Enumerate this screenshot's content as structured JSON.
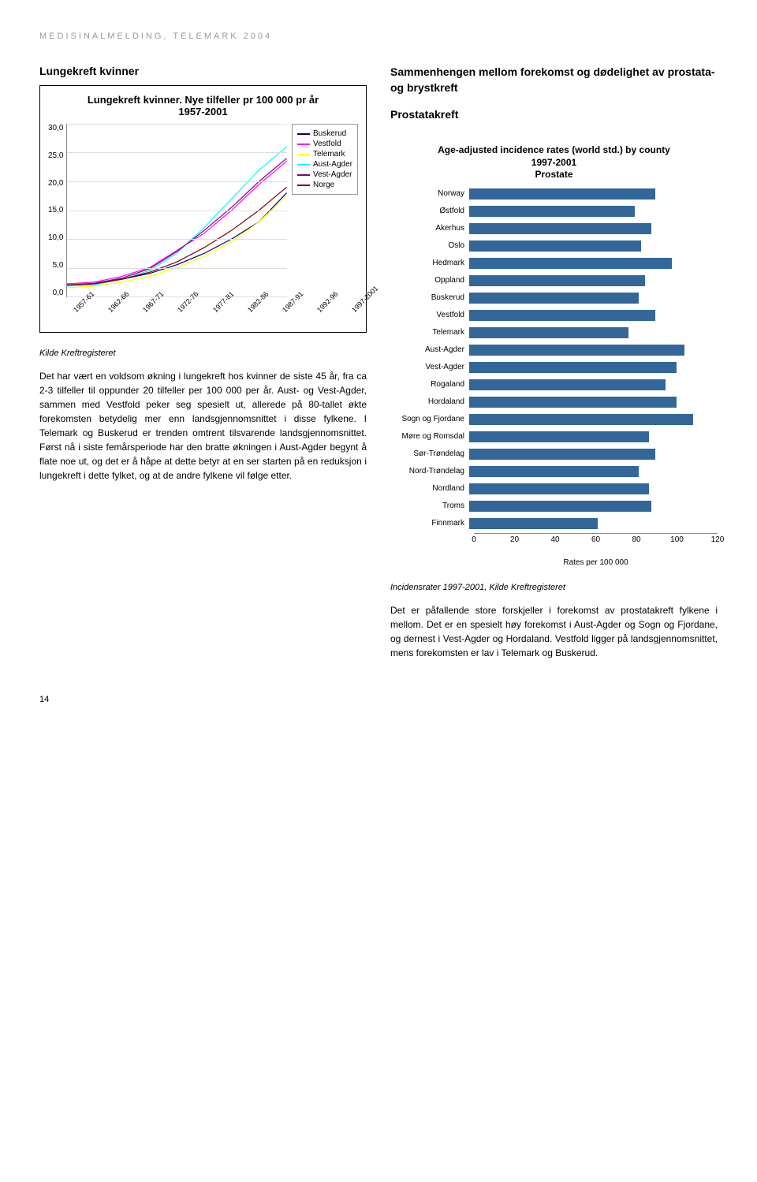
{
  "running_header": "MEDISINALMELDING, TELEMARK 2004",
  "page_number": "14",
  "left": {
    "section_title": "Lungekreft kvinner",
    "chart": {
      "type": "line",
      "title_line1": "Lungekreft kvinner. Nye tilfeller pr 100 000 pr år",
      "title_line2": "1957-2001",
      "y_ticks": [
        "30,0",
        "25,0",
        "20,0",
        "15,0",
        "10,0",
        "5,0",
        "0,0"
      ],
      "y_max": 30,
      "x_ticks": [
        "1957-61",
        "1962-66",
        "1967-71",
        "1972-76",
        "1977-81",
        "1982-86",
        "1987-91",
        "1992-96",
        "1997-2001"
      ],
      "series": [
        {
          "name": "Buskerud",
          "color": "#000080",
          "values": [
            2.0,
            2.2,
            3.0,
            4.0,
            5.5,
            7.5,
            10.0,
            13.0,
            18.0
          ]
        },
        {
          "name": "Vestfold",
          "color": "#ff00ff",
          "values": [
            2.2,
            2.5,
            3.5,
            5.0,
            8.0,
            11.0,
            15.0,
            19.5,
            23.5
          ]
        },
        {
          "name": "Telemark",
          "color": "#ffff00",
          "values": [
            1.5,
            1.8,
            2.5,
            3.5,
            5.0,
            7.0,
            9.5,
            13.0,
            17.5
          ]
        },
        {
          "name": "Aust-Agder",
          "color": "#00ffff",
          "values": [
            1.8,
            2.0,
            3.0,
            4.5,
            7.5,
            12.0,
            17.0,
            22.0,
            26.0
          ]
        },
        {
          "name": "Vest-Agder",
          "color": "#800080",
          "values": [
            2.0,
            2.3,
            3.2,
            4.8,
            7.8,
            11.5,
            15.5,
            20.0,
            24.0
          ]
        },
        {
          "name": "Norge",
          "color": "#800000",
          "values": [
            2.0,
            2.2,
            3.0,
            4.2,
            6.0,
            8.5,
            11.5,
            15.0,
            19.0
          ]
        }
      ],
      "background_color": "#ffffff",
      "grid_color": "#dddddd",
      "axis_color": "#888888",
      "label_fontsize": 10
    },
    "source": "Kilde Kreftregisteret",
    "paragraph": "Det har vært en voldsom økning i lungekreft hos kvinner de siste 45 år, fra ca 2-3 tilfeller til oppunder 20 tilfeller per 100 000 per år. Aust- og Vest-Agder, sammen med Vestfold peker seg spesielt ut, allerede på 80-tallet økte forekomsten betydelig mer enn landsgjennom­snittet i disse fylkene. I Telemark og Buskerud er trenden omtrent tilsvarende landsgjennom­snittet. Først nå i siste femårsperiode har den bratte økningen i Aust-Agder begynt å flate noe ut, og det er å håpe at dette betyr at en ser starten på en reduksjon i lungekreft i dette fylket, og at de andre fylkene vil følge etter."
  },
  "right": {
    "section_title": "Sammenhengen mellom forekomst og dødelighet av prostata- og brystkreft",
    "subtitle": "Prostatakreft",
    "bar_chart": {
      "type": "bar",
      "title_line1": "Age-adjusted incidence rates (world std.) by county",
      "title_line2": "1997-2001",
      "title_line3": "Prostate",
      "x_max": 120,
      "x_ticks": [
        0,
        20,
        40,
        60,
        80,
        100,
        120
      ],
      "x_label": "Rates per 100 000",
      "bar_color": "#336699",
      "grid_color": "#dddddd",
      "categories": [
        {
          "label": "Norway",
          "value": 90
        },
        {
          "label": "Østfold",
          "value": 80
        },
        {
          "label": "Akerhus",
          "value": 88
        },
        {
          "label": "Oslo",
          "value": 83
        },
        {
          "label": "Hedmark",
          "value": 98
        },
        {
          "label": "Oppland",
          "value": 85
        },
        {
          "label": "Buskerud",
          "value": 82
        },
        {
          "label": "Vestfold",
          "value": 90
        },
        {
          "label": "Telemark",
          "value": 77
        },
        {
          "label": "Aust-Agder",
          "value": 104
        },
        {
          "label": "Vest-Agder",
          "value": 100
        },
        {
          "label": "Rogaland",
          "value": 95
        },
        {
          "label": "Hordaland",
          "value": 100
        },
        {
          "label": "Sogn og Fjordane",
          "value": 108
        },
        {
          "label": "Møre og Romsdal",
          "value": 87
        },
        {
          "label": "Sør-Trøndelag",
          "value": 90
        },
        {
          "label": "Nord-Trøndelag",
          "value": 82
        },
        {
          "label": "Nordland",
          "value": 87
        },
        {
          "label": "Troms",
          "value": 88
        },
        {
          "label": "Finnmark",
          "value": 62
        }
      ]
    },
    "source": "Incidensrater 1997-2001, Kilde Kreftregisteret",
    "paragraph": "Det er påfallende store forskjeller i forekomst av prostatakreft fylkene i mellom. Det er en spesielt høy forekomst i Aust-Agder og Sogn og Fjordane, og dernest i Vest-Agder og Hordaland. Vestfold ligger på landsgjennom­snittet, mens forekomsten er lav i Telemark og Buskerud."
  }
}
